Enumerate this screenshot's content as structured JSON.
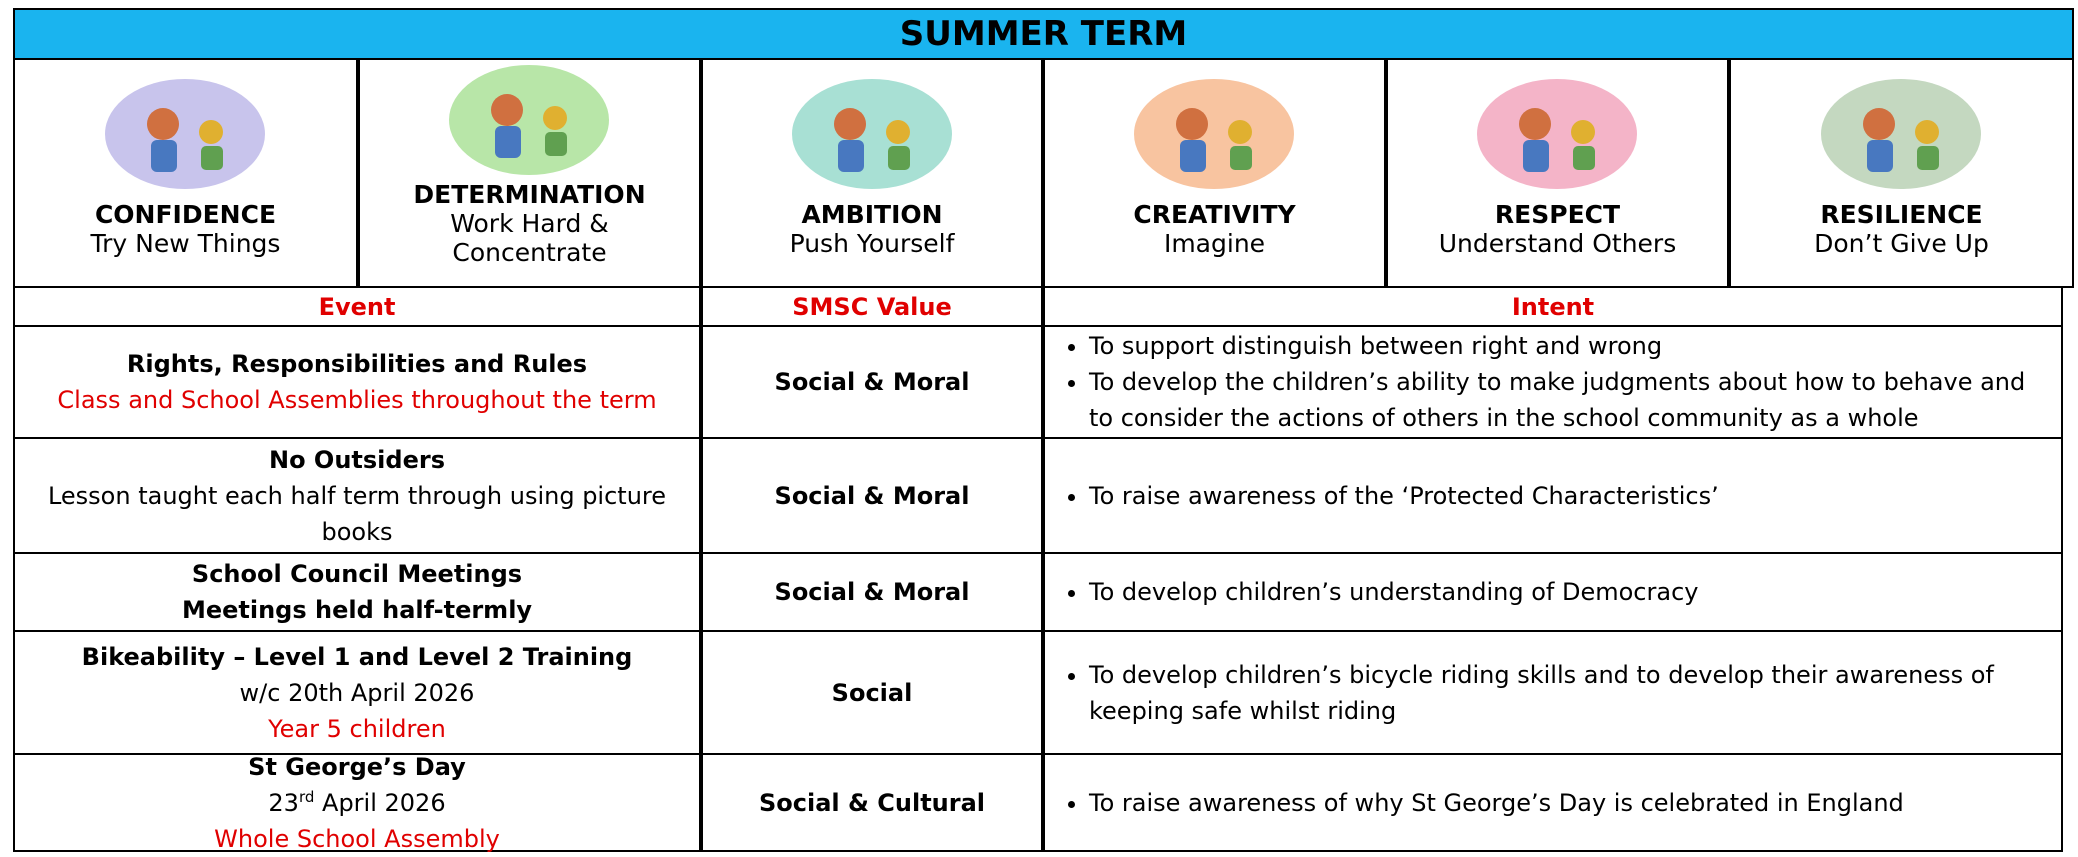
{
  "header": {
    "title": "SUMMER TERM"
  },
  "values": [
    {
      "name": "CONFIDENCE",
      "motto": "Try New Things"
    },
    {
      "name": "DETERMINATION",
      "motto": "Work Hard & Concentrate"
    },
    {
      "name": "AMBITION",
      "motto": "Push Yourself"
    },
    {
      "name": "CREATIVITY",
      "motto": "Imagine"
    },
    {
      "name": "RESPECT",
      "motto": "Understand Others"
    },
    {
      "name": "RESILIENCE",
      "motto": "Don’t Give Up"
    }
  ],
  "table": {
    "headers": [
      "Event",
      "SMSC Value",
      "Intent"
    ],
    "rows": [
      {
        "event": {
          "title": "Rights, Responsibilities and Rules",
          "note": "Class and School Assemblies throughout the term"
        },
        "smsc": "Social & Moral",
        "intent": [
          "To support distinguish between right and wrong",
          "To develop the children’s ability to make judgments about how to behave and to consider the actions of others in the school community as a whole"
        ]
      },
      {
        "event": {
          "title": "No Outsiders",
          "detail": "Lesson taught each half term through using picture books"
        },
        "smsc": "Social & Moral",
        "intent": [
          "To raise awareness of the ‘Protected Characteristics’"
        ]
      },
      {
        "event": {
          "title": "School Council Meetings",
          "title2": "Meetings held half-termly"
        },
        "smsc": "Social & Moral",
        "intent": [
          "To develop children’s understanding of Democracy"
        ]
      },
      {
        "event": {
          "title": "Bikeability – Level 1 and Level 2 Training",
          "detail": "w/c 20th April 2026",
          "note": "Year 5 children"
        },
        "smsc": "Social",
        "intent": [
          "To develop children’s bicycle riding skills and to develop their awareness of keeping safe whilst riding"
        ]
      },
      {
        "event": {
          "title": "St George’s Day",
          "day": "23",
          "sup": "rd",
          "rest": " April 2026",
          "note": "Whole School Assembly"
        },
        "smsc": "Social & Cultural",
        "intent": [
          "To raise awareness of why St George’s Day is celebrated in England"
        ]
      }
    ]
  }
}
